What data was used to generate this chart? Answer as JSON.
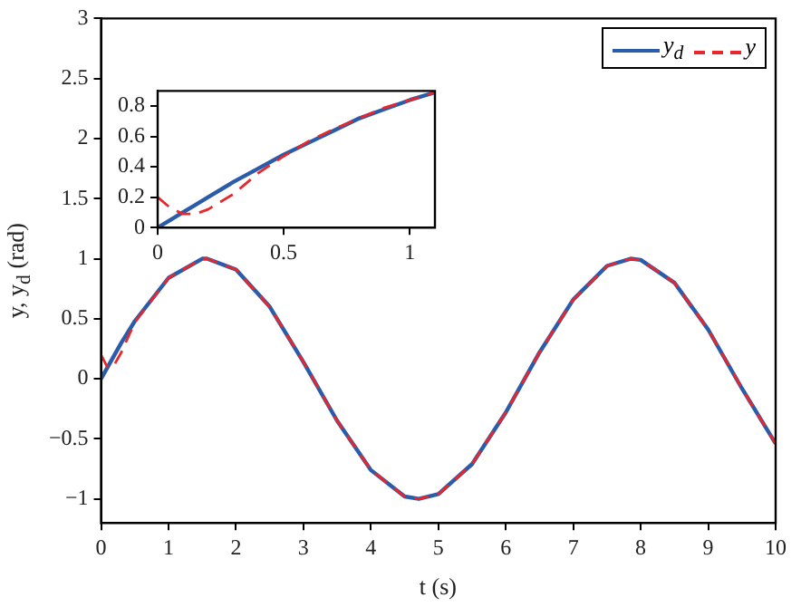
{
  "chart_data": [
    {
      "type": "line",
      "xlabel": "t (s)",
      "ylabel": "y, y$_{d}$ (rad)",
      "xlim": [
        0,
        10
      ],
      "ylim": [
        -1.2,
        3
      ],
      "xticks": [
        0,
        1,
        2,
        3,
        4,
        5,
        6,
        7,
        8,
        9,
        10
      ],
      "yticks": [
        -1,
        -0.5,
        0,
        0.5,
        1,
        1.5,
        2,
        2.5,
        3
      ],
      "legend": "top right",
      "marker": "none",
      "x": [
        0,
        0.1,
        0.2,
        0.3,
        0.5,
        1,
        1.5,
        1.57,
        2,
        2.5,
        3,
        3.5,
        4,
        4.5,
        4.71,
        5,
        5.5,
        6,
        6.5,
        7,
        7.5,
        7.85,
        8,
        8.5,
        9,
        9.5,
        10
      ],
      "series": [
        {
          "name": "y$_{d}$",
          "color": "#2a5caa",
          "line_style": "solid",
          "values": [
            0,
            0.1,
            0.2,
            0.3,
            0.48,
            0.84,
            1.0,
            1.0,
            0.91,
            0.6,
            0.14,
            -0.35,
            -0.76,
            -0.98,
            -1.0,
            -0.96,
            -0.71,
            -0.28,
            0.22,
            0.66,
            0.94,
            1.0,
            0.99,
            0.8,
            0.41,
            -0.08,
            -0.54
          ]
        },
        {
          "name": "y",
          "color": "#e8262b",
          "line_style": "dashed",
          "values": [
            0.2,
            0.09,
            0.12,
            0.22,
            0.47,
            0.84,
            1.0,
            1.0,
            0.91,
            0.6,
            0.14,
            -0.35,
            -0.76,
            -0.98,
            -1.0,
            -0.96,
            -0.71,
            -0.28,
            0.22,
            0.66,
            0.94,
            1.0,
            0.99,
            0.8,
            0.41,
            -0.08,
            -0.54
          ]
        }
      ]
    },
    {
      "type": "line",
      "xlim": [
        0,
        1.1
      ],
      "ylim": [
        0,
        0.9
      ],
      "xticks": [
        0,
        0.5,
        1
      ],
      "yticks": [
        0,
        0.2,
        0.4,
        0.6,
        0.8
      ],
      "marker": "none",
      "x": [
        0,
        0.05,
        0.1,
        0.15,
        0.2,
        0.3,
        0.4,
        0.5,
        0.6,
        0.7,
        0.8,
        0.9,
        1.0,
        1.1
      ],
      "series": [
        {
          "color": "#2a5caa",
          "line_style": "solid",
          "values": [
            0,
            0.05,
            0.1,
            0.15,
            0.2,
            0.3,
            0.39,
            0.48,
            0.56,
            0.64,
            0.72,
            0.78,
            0.84,
            0.89
          ]
        },
        {
          "color": "#e8262b",
          "line_style": "dashed",
          "values": [
            0.2,
            0.13,
            0.09,
            0.09,
            0.12,
            0.22,
            0.36,
            0.47,
            0.57,
            0.65,
            0.72,
            0.79,
            0.84,
            0.89
          ]
        }
      ]
    }
  ]
}
